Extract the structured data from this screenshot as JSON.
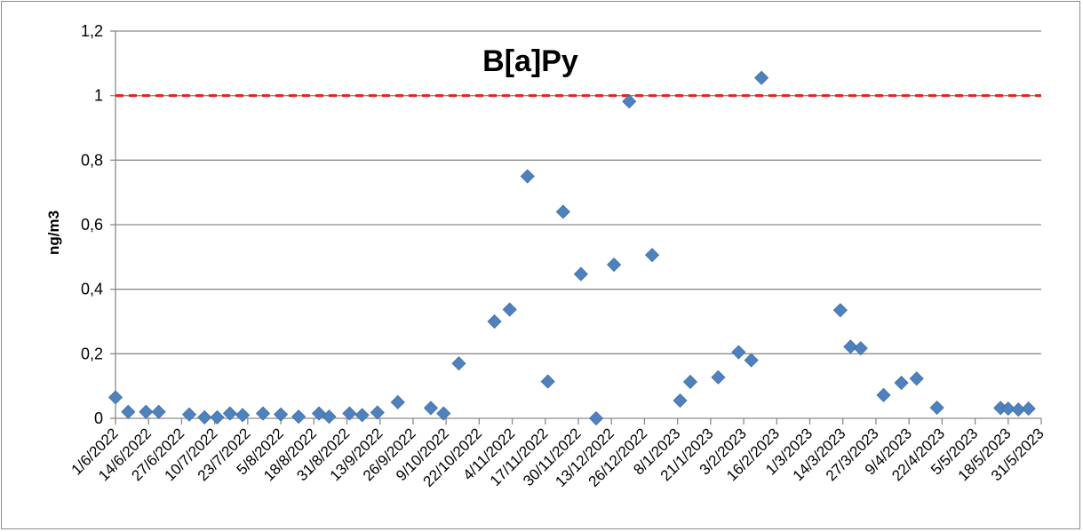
{
  "chart_data": {
    "type": "scatter",
    "title": "B[a]Py",
    "xlabel": "",
    "ylabel": "ng/m3",
    "x_range": [
      "1/6/2022",
      "31/5/2023"
    ],
    "ylim": [
      0,
      1.2
    ],
    "yticks": [
      "0",
      "0,2",
      "0,4",
      "0,6",
      "0,8",
      "1",
      "1,2"
    ],
    "xticks": [
      "1/6/2022",
      "14/6/2022",
      "27/6/2022",
      "10/7/2022",
      "23/7/2022",
      "5/8/2022",
      "18/8/2022",
      "31/8/2022",
      "13/9/2022",
      "26/9/2022",
      "9/10/2022",
      "22/10/2022",
      "4/11/2022",
      "17/11/2022",
      "30/11/2022",
      "13/12/2022",
      "26/12/2022",
      "8/1/2023",
      "21/1/2023",
      "3/2/2023",
      "16/2/2023",
      "1/3/2023",
      "14/3/2023",
      "27/3/2023",
      "9/4/2023",
      "22/4/2023",
      "5/5/2023",
      "18/5/2023",
      "31/5/2023"
    ],
    "grid": true,
    "legend": "none",
    "reference_line": {
      "y": 1,
      "color": "#e8211c",
      "style": "dashed"
    },
    "marker_color": "#4f81bd",
    "series": [
      {
        "points": [
          {
            "x": "1/6/2022",
            "y": 0.065
          },
          {
            "x": "6/6/2022",
            "y": 0.02
          },
          {
            "x": "13/6/2022",
            "y": 0.02
          },
          {
            "x": "18/6/2022",
            "y": 0.02
          },
          {
            "x": "30/6/2022",
            "y": 0.012
          },
          {
            "x": "6/7/2022",
            "y": 0.003
          },
          {
            "x": "11/7/2022",
            "y": 0.003
          },
          {
            "x": "16/7/2022",
            "y": 0.015
          },
          {
            "x": "21/7/2022",
            "y": 0.01
          },
          {
            "x": "29/7/2022",
            "y": 0.015
          },
          {
            "x": "5/8/2022",
            "y": 0.012
          },
          {
            "x": "12/8/2022",
            "y": 0.005
          },
          {
            "x": "20/8/2022",
            "y": 0.015
          },
          {
            "x": "24/8/2022",
            "y": 0.005
          },
          {
            "x": "1/9/2022",
            "y": 0.015
          },
          {
            "x": "6/9/2022",
            "y": 0.01
          },
          {
            "x": "12/9/2022",
            "y": 0.018
          },
          {
            "x": "20/9/2022",
            "y": 0.05
          },
          {
            "x": "3/10/2022",
            "y": 0.032
          },
          {
            "x": "8/10/2022",
            "y": 0.015
          },
          {
            "x": "14/10/2022",
            "y": 0.17
          },
          {
            "x": "28/10/2022",
            "y": 0.3
          },
          {
            "x": "3/11/2022",
            "y": 0.337
          },
          {
            "x": "10/11/2022",
            "y": 0.75
          },
          {
            "x": "18/11/2022",
            "y": 0.114
          },
          {
            "x": "24/11/2022",
            "y": 0.64
          },
          {
            "x": "1/12/2022",
            "y": 0.447
          },
          {
            "x": "7/12/2022",
            "y": 0.0
          },
          {
            "x": "14/12/2022",
            "y": 0.476
          },
          {
            "x": "20/12/2022",
            "y": 0.982
          },
          {
            "x": "29/12/2022",
            "y": 0.506
          },
          {
            "x": "9/1/2023",
            "y": 0.055
          },
          {
            "x": "13/1/2023",
            "y": 0.113
          },
          {
            "x": "24/1/2023",
            "y": 0.127
          },
          {
            "x": "1/2/2023",
            "y": 0.205
          },
          {
            "x": "6/2/2023",
            "y": 0.18
          },
          {
            "x": "10/2/2023",
            "y": 1.055
          },
          {
            "x": "13/3/2023",
            "y": 0.335
          },
          {
            "x": "17/3/2023",
            "y": 0.222
          },
          {
            "x": "21/3/2023",
            "y": 0.217
          },
          {
            "x": "30/3/2023",
            "y": 0.072
          },
          {
            "x": "6/4/2023",
            "y": 0.11
          },
          {
            "x": "12/4/2023",
            "y": 0.123
          },
          {
            "x": "20/4/2023",
            "y": 0.033
          },
          {
            "x": "15/5/2023",
            "y": 0.032
          },
          {
            "x": "18/5/2023",
            "y": 0.03
          },
          {
            "x": "22/5/2023",
            "y": 0.027
          },
          {
            "x": "26/5/2023",
            "y": 0.03
          }
        ]
      }
    ]
  }
}
